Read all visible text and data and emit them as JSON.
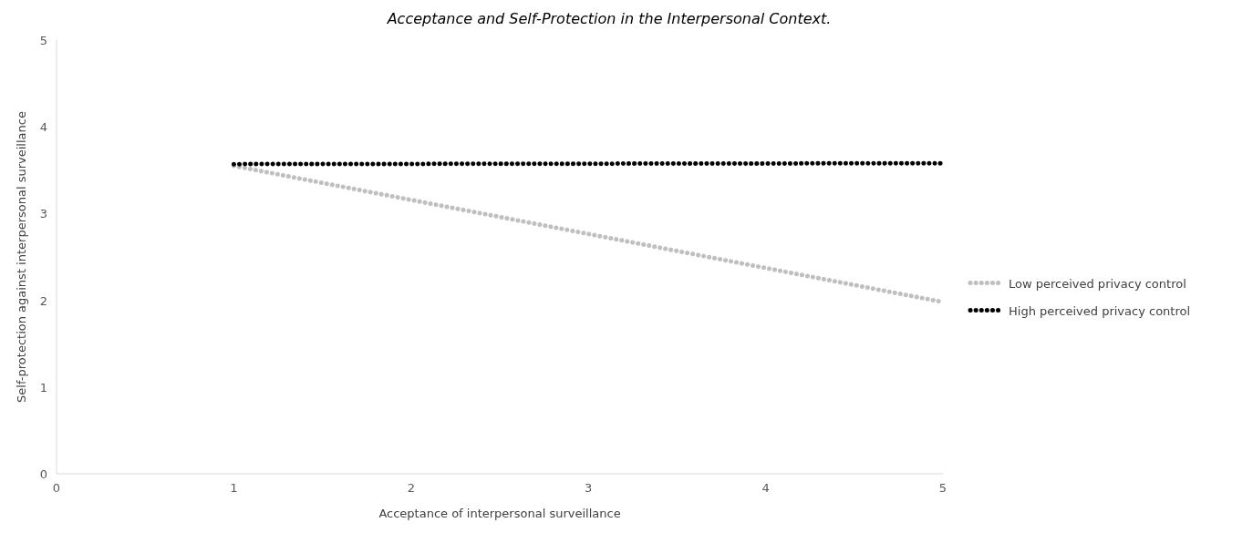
{
  "chart_data": {
    "type": "line",
    "title": "Acceptance and Self-Protection in the Interpersonal Context.",
    "xlabel": "Acceptance of interpersonal surveillance",
    "ylabel": "Self-protection against interpersonal surveillance",
    "x": [
      1,
      5
    ],
    "xlim": [
      0,
      5
    ],
    "xticks": [
      0,
      1,
      2,
      3,
      4,
      5
    ],
    "ylim": [
      0,
      5
    ],
    "yticks": [
      0,
      1,
      2,
      3,
      4,
      5
    ],
    "grid": false,
    "legend": "right",
    "line_style": "dotted",
    "series": [
      {
        "name": "Low perceived privacy control",
        "color": "#bfbfbf",
        "values": [
          3.55,
          1.98
        ]
      },
      {
        "name": "High perceived privacy control",
        "color": "#000000",
        "values": [
          3.57,
          3.58
        ]
      }
    ]
  }
}
